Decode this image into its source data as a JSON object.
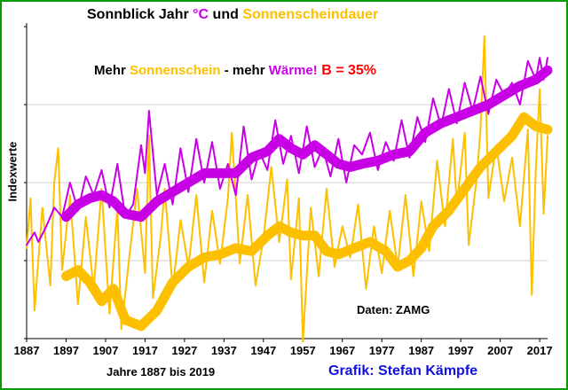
{
  "colors": {
    "temp": "#c800e6",
    "sun": "#fdc000",
    "black": "#000000",
    "red": "#ff0000",
    "blue": "#1010e0",
    "frame": "#00a000",
    "grid": "#d0d0d0"
  },
  "title": {
    "part1": "Sonnblick Jahr ",
    "part2": "°C",
    "part3": " und ",
    "part4": "Sonnenscheindauer"
  },
  "subtitle": {
    "part1": "Mehr ",
    "part2": "Sonnenschein",
    "part3": " - mehr ",
    "part4": "Wärme!",
    "part5": "  B = 35%"
  },
  "source": "Daten: ZAMG",
  "xlabel": "Jahre 1887 bis 2019",
  "credit": "Grafik: Stefan Kämpfe",
  "ylabel": "Indexwerte",
  "chart_data": {
    "type": "line",
    "title": "Sonnblick Jahr °C und Sonnenscheindauer",
    "xlabel": "Jahre 1887 bis 2019",
    "ylabel": "Indexwerte",
    "xlim": [
      1887,
      2019
    ],
    "ylim": [
      0,
      10
    ],
    "grid": true,
    "x_ticks": [
      1887,
      1897,
      1907,
      1917,
      1927,
      1937,
      1947,
      1957,
      1967,
      1977,
      1987,
      1997,
      2007,
      2017
    ],
    "series": [
      {
        "name": "°C",
        "color": "#c800e6",
        "style": "annual",
        "anchors": [
          [
            1887,
            3.0
          ],
          [
            1889,
            3.4
          ],
          [
            1890,
            3.1
          ],
          [
            1892,
            3.6
          ],
          [
            1894,
            4.2
          ],
          [
            1896,
            3.9
          ],
          [
            1898,
            5.0
          ],
          [
            1900,
            4.1
          ],
          [
            1902,
            5.2
          ],
          [
            1904,
            4.6
          ],
          [
            1906,
            5.4
          ],
          [
            1908,
            4.2
          ],
          [
            1910,
            5.6
          ],
          [
            1912,
            3.9
          ],
          [
            1914,
            4.3
          ],
          [
            1916,
            6.2
          ],
          [
            1917,
            5.3
          ],
          [
            1918,
            7.3
          ],
          [
            1920,
            4.6
          ],
          [
            1922,
            5.6
          ],
          [
            1924,
            4.3
          ],
          [
            1926,
            6.1
          ],
          [
            1928,
            4.7
          ],
          [
            1930,
            6.4
          ],
          [
            1932,
            5.0
          ],
          [
            1934,
            6.3
          ],
          [
            1936,
            4.8
          ],
          [
            1938,
            5.6
          ],
          [
            1940,
            4.6
          ],
          [
            1942,
            6.8
          ],
          [
            1944,
            5.1
          ],
          [
            1946,
            6.0
          ],
          [
            1948,
            5.4
          ],
          [
            1950,
            7.0
          ],
          [
            1952,
            5.6
          ],
          [
            1954,
            6.5
          ],
          [
            1956,
            5.3
          ],
          [
            1958,
            6.8
          ],
          [
            1960,
            5.5
          ],
          [
            1962,
            6.1
          ],
          [
            1964,
            5.2
          ],
          [
            1966,
            6.4
          ],
          [
            1968,
            5.0
          ],
          [
            1970,
            6.2
          ],
          [
            1972,
            5.9
          ],
          [
            1974,
            6.6
          ],
          [
            1976,
            5.4
          ],
          [
            1978,
            6.3
          ],
          [
            1980,
            5.7
          ],
          [
            1982,
            7.0
          ],
          [
            1984,
            5.8
          ],
          [
            1986,
            7.1
          ],
          [
            1988,
            6.3
          ],
          [
            1990,
            7.7
          ],
          [
            1992,
            6.8
          ],
          [
            1994,
            8.0
          ],
          [
            1996,
            6.9
          ],
          [
            1998,
            8.2
          ],
          [
            2000,
            7.3
          ],
          [
            2002,
            8.4
          ],
          [
            2004,
            7.2
          ],
          [
            2006,
            8.3
          ],
          [
            2008,
            7.8
          ],
          [
            2010,
            8.2
          ],
          [
            2012,
            7.5
          ],
          [
            2014,
            8.9
          ],
          [
            2016,
            8.3
          ],
          [
            2017,
            9.0
          ],
          [
            2018,
            8.3
          ],
          [
            2019,
            9.0
          ]
        ]
      },
      {
        "name": "°C",
        "color": "#c800e6",
        "style": "smooth",
        "anchors": [
          [
            1897,
            3.9
          ],
          [
            1900,
            4.3
          ],
          [
            1903,
            4.5
          ],
          [
            1906,
            4.6
          ],
          [
            1909,
            4.4
          ],
          [
            1912,
            4.0
          ],
          [
            1916,
            3.9
          ],
          [
            1920,
            4.4
          ],
          [
            1924,
            4.7
          ],
          [
            1928,
            5.0
          ],
          [
            1932,
            5.3
          ],
          [
            1936,
            5.3
          ],
          [
            1940,
            5.3
          ],
          [
            1944,
            5.8
          ],
          [
            1948,
            6.0
          ],
          [
            1951,
            6.4
          ],
          [
            1954,
            6.1
          ],
          [
            1957,
            5.9
          ],
          [
            1960,
            6.2
          ],
          [
            1963,
            5.9
          ],
          [
            1966,
            5.6
          ],
          [
            1969,
            5.5
          ],
          [
            1972,
            5.6
          ],
          [
            1976,
            5.7
          ],
          [
            1980,
            5.9
          ],
          [
            1984,
            6.0
          ],
          [
            1988,
            6.6
          ],
          [
            1992,
            6.9
          ],
          [
            1996,
            7.1
          ],
          [
            2000,
            7.3
          ],
          [
            2004,
            7.5
          ],
          [
            2008,
            7.8
          ],
          [
            2012,
            8.1
          ],
          [
            2016,
            8.3
          ],
          [
            2019,
            8.6
          ]
        ]
      },
      {
        "name": "Sonnenscheindauer",
        "color": "#fdc000",
        "style": "annual",
        "anchors": [
          [
            1887,
            2.9
          ],
          [
            1888,
            4.5
          ],
          [
            1889,
            0.9
          ],
          [
            1891,
            4.2
          ],
          [
            1893,
            1.7
          ],
          [
            1894,
            5.0
          ],
          [
            1895,
            6.1
          ],
          [
            1896,
            2.2
          ],
          [
            1898,
            4.6
          ],
          [
            1900,
            1.1
          ],
          [
            1902,
            3.9
          ],
          [
            1904,
            1.6
          ],
          [
            1906,
            4.8
          ],
          [
            1908,
            0.8
          ],
          [
            1910,
            4.2
          ],
          [
            1911,
            0.3
          ],
          [
            1913,
            2.6
          ],
          [
            1915,
            4.8
          ],
          [
            1917,
            2.1
          ],
          [
            1918,
            6.5
          ],
          [
            1919,
            1.3
          ],
          [
            1921,
            3.3
          ],
          [
            1922,
            4.8
          ],
          [
            1924,
            1.6
          ],
          [
            1926,
            3.8
          ],
          [
            1928,
            2.3
          ],
          [
            1930,
            4.6
          ],
          [
            1932,
            1.8
          ],
          [
            1934,
            4.1
          ],
          [
            1936,
            2.4
          ],
          [
            1938,
            4.5
          ],
          [
            1939,
            6.6
          ],
          [
            1941,
            2.4
          ],
          [
            1943,
            4.6
          ],
          [
            1945,
            1.7
          ],
          [
            1947,
            3.2
          ],
          [
            1949,
            5.5
          ],
          [
            1951,
            3.1
          ],
          [
            1953,
            5.1
          ],
          [
            1954,
            1.9
          ],
          [
            1956,
            4.5
          ],
          [
            1957,
            -0.1
          ],
          [
            1959,
            4.2
          ],
          [
            1961,
            2.0
          ],
          [
            1963,
            4.8
          ],
          [
            1965,
            2.3
          ],
          [
            1967,
            3.6
          ],
          [
            1969,
            2.6
          ],
          [
            1971,
            4.3
          ],
          [
            1973,
            1.6
          ],
          [
            1975,
            3.6
          ],
          [
            1977,
            2.1
          ],
          [
            1979,
            4.1
          ],
          [
            1981,
            2.3
          ],
          [
            1983,
            4.6
          ],
          [
            1985,
            2.0
          ],
          [
            1987,
            4.4
          ],
          [
            1989,
            2.8
          ],
          [
            1991,
            5.7
          ],
          [
            1993,
            3.6
          ],
          [
            1995,
            6.4
          ],
          [
            1996,
            4.3
          ],
          [
            1998,
            6.6
          ],
          [
            1999,
            3.0
          ],
          [
            2001,
            5.1
          ],
          [
            2002,
            6.7
          ],
          [
            2003,
            9.7
          ],
          [
            2004,
            4.5
          ],
          [
            2006,
            6.2
          ],
          [
            2008,
            4.4
          ],
          [
            2010,
            5.8
          ],
          [
            2012,
            3.6
          ],
          [
            2014,
            6.7
          ],
          [
            2015,
            1.4
          ],
          [
            2016,
            5.4
          ],
          [
            2017,
            8.0
          ],
          [
            2018,
            4.0
          ],
          [
            2019,
            6.5
          ]
        ]
      },
      {
        "name": "Sonnenscheindauer",
        "color": "#fdc000",
        "style": "smooth",
        "anchors": [
          [
            1897,
            2.0
          ],
          [
            1900,
            2.2
          ],
          [
            1903,
            1.8
          ],
          [
            1906,
            1.2
          ],
          [
            1909,
            1.6
          ],
          [
            1912,
            0.6
          ],
          [
            1916,
            0.4
          ],
          [
            1920,
            0.9
          ],
          [
            1924,
            1.8
          ],
          [
            1928,
            2.3
          ],
          [
            1932,
            2.6
          ],
          [
            1936,
            2.7
          ],
          [
            1940,
            2.9
          ],
          [
            1944,
            2.8
          ],
          [
            1948,
            3.3
          ],
          [
            1951,
            3.6
          ],
          [
            1954,
            3.4
          ],
          [
            1957,
            3.3
          ],
          [
            1960,
            3.3
          ],
          [
            1963,
            2.8
          ],
          [
            1966,
            2.7
          ],
          [
            1970,
            2.9
          ],
          [
            1974,
            3.1
          ],
          [
            1978,
            2.8
          ],
          [
            1981,
            2.3
          ],
          [
            1984,
            2.5
          ],
          [
            1987,
            2.9
          ],
          [
            1990,
            3.6
          ],
          [
            1994,
            4.1
          ],
          [
            1998,
            4.8
          ],
          [
            2002,
            5.5
          ],
          [
            2006,
            6.0
          ],
          [
            2010,
            6.5
          ],
          [
            2013,
            7.1
          ],
          [
            2016,
            6.8
          ],
          [
            2019,
            6.7
          ]
        ]
      }
    ]
  }
}
